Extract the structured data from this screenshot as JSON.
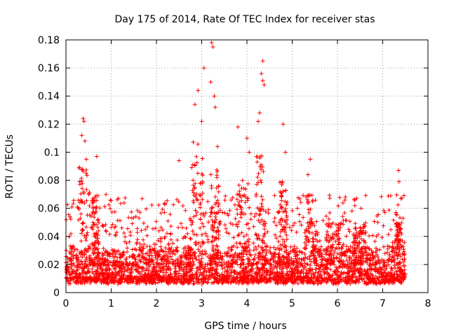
{
  "chart_data": {
    "type": "scatter",
    "title": "Day 175 of 2014, Rate Of TEC Index for receiver stas",
    "xlabel": "GPS time / hours",
    "ylabel": "ROTI / TECUs",
    "xlim": [
      0,
      8
    ],
    "ylim": [
      0,
      0.18
    ],
    "xticks": [
      0,
      1,
      2,
      3,
      4,
      5,
      6,
      7,
      8
    ],
    "xtick_labels": [
      "0",
      "1",
      "2",
      "3",
      "4",
      "5",
      "6",
      "7",
      "8"
    ],
    "yticks": [
      0,
      0.02,
      0.04,
      0.06,
      0.08,
      0.1,
      0.12,
      0.14,
      0.16,
      0.18
    ],
    "ytick_labels": [
      "0",
      "0.02",
      "0.04",
      "0.06",
      "0.08",
      "0.1",
      "0.12",
      "0.14",
      "0.16",
      "0.18"
    ],
    "grid": true,
    "marker": "+",
    "color": "#ff0000",
    "series": [
      {
        "name": "ROTI",
        "x_range": [
          0,
          7.5
        ],
        "baseline_range": [
          0.006,
          0.03
        ],
        "notable_points": [
          {
            "x": 0.38,
            "y": 0.124
          },
          {
            "x": 0.4,
            "y": 0.122
          },
          {
            "x": 0.35,
            "y": 0.112
          },
          {
            "x": 0.42,
            "y": 0.108
          },
          {
            "x": 0.45,
            "y": 0.095
          },
          {
            "x": 0.68,
            "y": 0.097
          },
          {
            "x": 0.3,
            "y": 0.079
          },
          {
            "x": 2.5,
            "y": 0.094
          },
          {
            "x": 2.85,
            "y": 0.134
          },
          {
            "x": 2.92,
            "y": 0.144
          },
          {
            "x": 3.0,
            "y": 0.122
          },
          {
            "x": 3.05,
            "y": 0.16
          },
          {
            "x": 3.2,
            "y": 0.15
          },
          {
            "x": 3.22,
            "y": 0.178
          },
          {
            "x": 3.25,
            "y": 0.175
          },
          {
            "x": 3.3,
            "y": 0.132
          },
          {
            "x": 3.28,
            "y": 0.14
          },
          {
            "x": 3.35,
            "y": 0.104
          },
          {
            "x": 3.8,
            "y": 0.118
          },
          {
            "x": 4.0,
            "y": 0.11
          },
          {
            "x": 4.05,
            "y": 0.1
          },
          {
            "x": 4.28,
            "y": 0.128
          },
          {
            "x": 4.25,
            "y": 0.122
          },
          {
            "x": 4.35,
            "y": 0.165
          },
          {
            "x": 4.32,
            "y": 0.156
          },
          {
            "x": 4.38,
            "y": 0.148
          },
          {
            "x": 4.35,
            "y": 0.151
          },
          {
            "x": 4.8,
            "y": 0.12
          },
          {
            "x": 4.85,
            "y": 0.1
          },
          {
            "x": 5.4,
            "y": 0.095
          },
          {
            "x": 5.35,
            "y": 0.084
          },
          {
            "x": 7.35,
            "y": 0.087
          },
          {
            "x": 7.36,
            "y": 0.079
          }
        ]
      }
    ]
  }
}
